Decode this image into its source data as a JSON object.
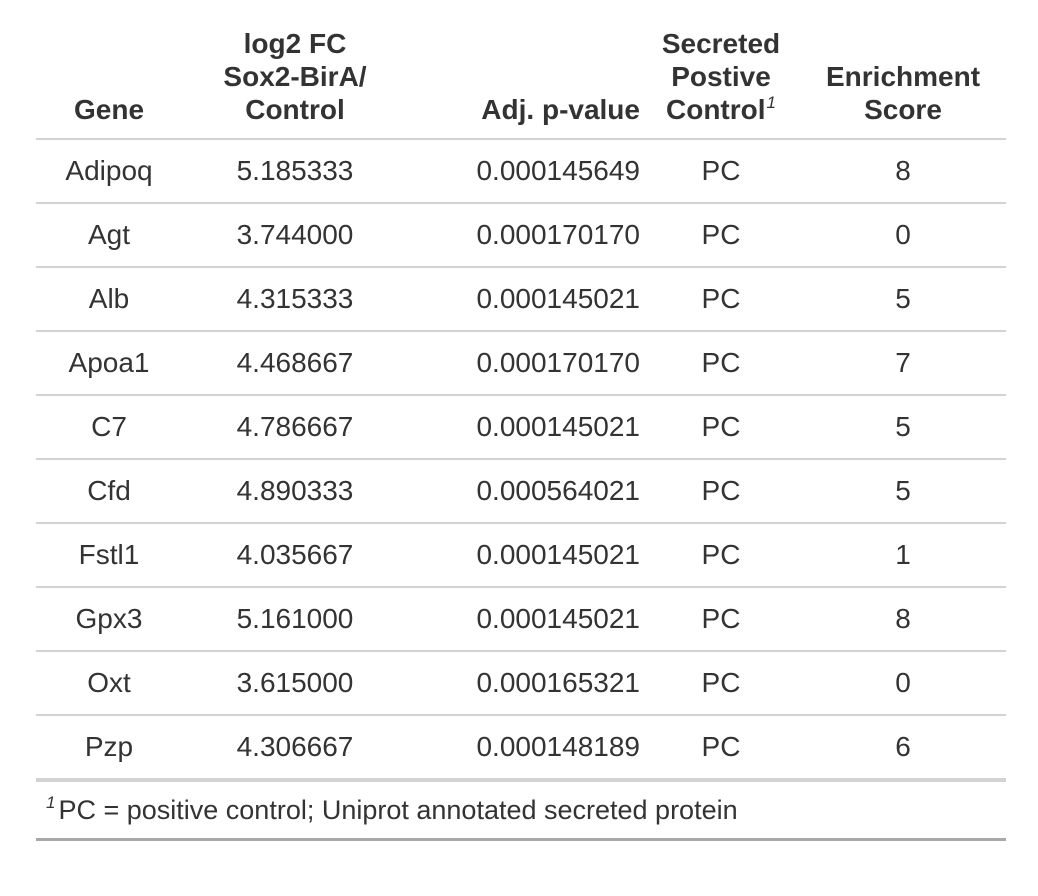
{
  "chart_data": {
    "type": "table",
    "columns": [
      {
        "key": "gene",
        "label_lines": [
          "Gene"
        ]
      },
      {
        "key": "log2fc",
        "label_lines": [
          "log2 FC",
          "Sox2-BirA/",
          "Control"
        ]
      },
      {
        "key": "adj_p",
        "label_lines": [
          "Adj. p-value"
        ]
      },
      {
        "key": "secreted",
        "label_lines": [
          "Secreted",
          "Postive",
          "Control"
        ],
        "footnote_mark": "1"
      },
      {
        "key": "enrichment",
        "label_lines": [
          "Enrichment",
          "Score"
        ]
      }
    ],
    "rows": [
      {
        "gene": "Adipoq",
        "log2fc": "5.185333",
        "adj_p": "0.000145649",
        "secreted": "PC",
        "enrichment": "8"
      },
      {
        "gene": "Agt",
        "log2fc": "3.744000",
        "adj_p": "0.000170170",
        "secreted": "PC",
        "enrichment": "0"
      },
      {
        "gene": "Alb",
        "log2fc": "4.315333",
        "adj_p": "0.000145021",
        "secreted": "PC",
        "enrichment": "5"
      },
      {
        "gene": "Apoa1",
        "log2fc": "4.468667",
        "adj_p": "0.000170170",
        "secreted": "PC",
        "enrichment": "7"
      },
      {
        "gene": "C7",
        "log2fc": "4.786667",
        "adj_p": "0.000145021",
        "secreted": "PC",
        "enrichment": "5"
      },
      {
        "gene": "Cfd",
        "log2fc": "4.890333",
        "adj_p": "0.000564021",
        "secreted": "PC",
        "enrichment": "5"
      },
      {
        "gene": "Fstl1",
        "log2fc": "4.035667",
        "adj_p": "0.000145021",
        "secreted": "PC",
        "enrichment": "1"
      },
      {
        "gene": "Gpx3",
        "log2fc": "5.161000",
        "adj_p": "0.000145021",
        "secreted": "PC",
        "enrichment": "8"
      },
      {
        "gene": "Oxt",
        "log2fc": "3.615000",
        "adj_p": "0.000165321",
        "secreted": "PC",
        "enrichment": "0"
      },
      {
        "gene": "Pzp",
        "log2fc": "4.306667",
        "adj_p": "0.000148189",
        "secreted": "PC",
        "enrichment": "6"
      }
    ],
    "footnote": {
      "mark": "1",
      "text": "PC = positive control; Uniprot annotated secreted protein"
    }
  }
}
